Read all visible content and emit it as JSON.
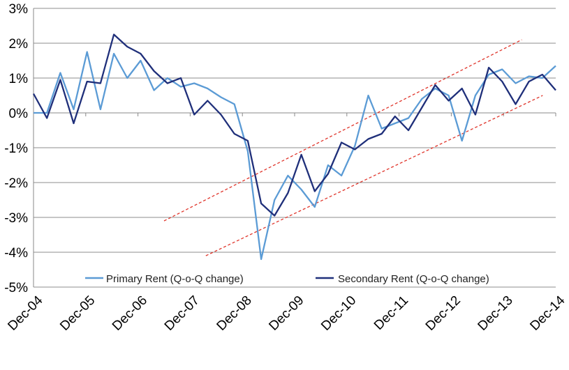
{
  "chart_data": {
    "type": "line",
    "title": "",
    "xlabel": "",
    "ylabel": "",
    "ylim": [
      -5,
      3
    ],
    "y_ticks": [
      "3%",
      "2%",
      "1%",
      "0%",
      "-1%",
      "-2%",
      "-3%",
      "-4%",
      "-5%"
    ],
    "y_tick_values": [
      3,
      2,
      1,
      0,
      -1,
      -2,
      -3,
      -4,
      -5
    ],
    "x_tick_labels": [
      "Dec-04",
      "Dec-05",
      "Dec-06",
      "Dec-07",
      "Dec-08",
      "Dec-09",
      "Dec-10",
      "Dec-11",
      "Dec-12",
      "Dec-13",
      "Dec-14"
    ],
    "grid": true,
    "legend_position": "bottom",
    "series": [
      {
        "name": "Primary Rent (Q-o-Q change)",
        "color": "#5b9bd5",
        "values": [
          0.0,
          0.0,
          1.15,
          0.1,
          1.75,
          0.1,
          1.7,
          1.0,
          1.5,
          0.65,
          1.0,
          0.75,
          0.85,
          0.7,
          0.45,
          0.25,
          -1.1,
          -4.2,
          -2.5,
          -1.8,
          -2.2,
          -2.7,
          -1.5,
          -1.8,
          -0.95,
          0.5,
          -0.45,
          -0.3,
          -0.15,
          0.4,
          0.7,
          0.5,
          -0.8,
          0.5,
          1.1,
          1.25,
          0.85,
          1.05,
          1.0,
          1.35
        ]
      },
      {
        "name": "Secondary Rent (Q-o-Q change)",
        "color": "#1f2f7a",
        "values": [
          0.55,
          -0.15,
          0.95,
          -0.3,
          0.9,
          0.85,
          2.25,
          1.9,
          1.7,
          1.2,
          0.85,
          1.0,
          -0.05,
          0.35,
          -0.05,
          -0.6,
          -0.8,
          -2.6,
          -2.95,
          -2.3,
          -1.2,
          -2.25,
          -1.75,
          -0.85,
          -1.05,
          -0.75,
          -0.6,
          -0.1,
          -0.5,
          0.15,
          0.8,
          0.35,
          0.7,
          -0.05,
          1.3,
          0.9,
          0.25,
          0.9,
          1.1,
          0.65
        ]
      }
    ],
    "trend_lines": [
      {
        "name": "channel-upper",
        "color": "#e0352b",
        "points": [
          [
            2.5,
            -3.1
          ],
          [
            9.35,
            2.1
          ]
        ]
      },
      {
        "name": "channel-lower",
        "color": "#e0352b",
        "points": [
          [
            3.3,
            -4.1
          ],
          [
            9.75,
            0.5
          ]
        ]
      }
    ]
  }
}
